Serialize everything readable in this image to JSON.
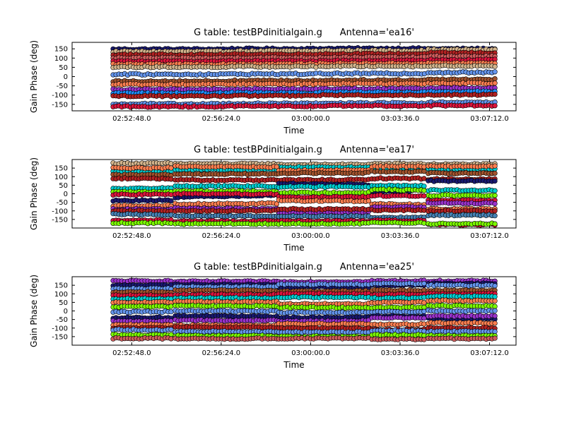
{
  "chart_data": [
    {
      "type": "scatter",
      "title": "G table: testBPdinitialgain.g      Antenna='ea16'",
      "xlabel": "Time",
      "ylabel": "Gain Phase (deg)",
      "xtick_labels": [
        "02:52:48.0",
        "02:56:24.0",
        "03:00:00.0",
        "03:03:36.0",
        "03:07:12.0"
      ],
      "xtick_seconds": [
        0,
        216,
        432,
        648,
        864
      ],
      "xlim_seconds": [
        -144,
        928
      ],
      "yticks": [
        -150,
        -100,
        -50,
        0,
        50,
        100,
        150
      ],
      "ylim": [
        -185,
        185
      ],
      "grid": false,
      "scan_seconds": [
        [
          -45,
          232
        ],
        [
          235,
          450
        ],
        [
          455,
          712
        ],
        [
          716,
          880
        ]
      ],
      "series": [
        {
          "color": "#191970",
          "values": [
            148,
            150,
            152,
            150
          ]
        },
        {
          "color": "#d2b48c",
          "values": [
            135,
            138,
            140,
            145
          ]
        },
        {
          "color": "#b22222",
          "values": [
            118,
            120,
            122,
            128
          ]
        },
        {
          "color": "#cd5c5c",
          "values": [
            100,
            102,
            104,
            110
          ]
        },
        {
          "color": "#dc143c",
          "values": [
            82,
            84,
            86,
            90
          ]
        },
        {
          "color": "#ff7f50",
          "values": [
            66,
            68,
            70,
            72
          ]
        },
        {
          "color": "#d2b48c",
          "values": [
            52,
            54,
            56,
            58
          ]
        },
        {
          "color": "#6495ed",
          "values": [
            12,
            14,
            16,
            22
          ]
        },
        {
          "color": "#a0522d",
          "values": [
            -25,
            -22,
            -20,
            -15
          ]
        },
        {
          "color": "#ff7f50",
          "values": [
            -42,
            -40,
            -38,
            -35
          ]
        },
        {
          "color": "#9932cc",
          "values": [
            -70,
            -68,
            -66,
            -62
          ]
        },
        {
          "color": "#1e90ff",
          "values": [
            -90,
            -88,
            -85,
            -82
          ]
        },
        {
          "color": "#b22222",
          "values": [
            -105,
            -103,
            -100,
            -98
          ]
        },
        {
          "color": "#6495ed",
          "values": [
            -148,
            -146,
            -144,
            -140
          ]
        },
        {
          "color": "#dc143c",
          "values": [
            -162,
            -160,
            -158,
            -156
          ]
        }
      ]
    },
    {
      "type": "scatter",
      "title": "G table: testBPdinitialgain.g      Antenna='ea17'",
      "xlabel": "Time",
      "ylabel": "Gain Phase (deg)",
      "xtick_labels": [
        "02:52:48.0",
        "02:56:24.0",
        "03:00:00.0",
        "03:03:36.0",
        "03:07:12.0"
      ],
      "xtick_seconds": [
        0,
        216,
        432,
        648,
        864
      ],
      "xlim_seconds": [
        -144,
        928
      ],
      "yticks": [
        -150,
        -100,
        -50,
        0,
        50,
        100,
        150
      ],
      "ylim": [
        -200,
        200
      ],
      "grid": false,
      "scan_seconds": [
        [
          -45,
          100
        ],
        [
          105,
          350
        ],
        [
          355,
          575
        ],
        [
          580,
          712
        ],
        [
          716,
          880
        ]
      ],
      "series": [
        {
          "color": "#d2b48c",
          "values": [
            178,
            175,
            170,
            175,
            172
          ]
        },
        {
          "color": "#00ced1",
          "values": [
            130,
            140,
            155,
            150,
            145
          ]
        },
        {
          "color": "#ff7f50",
          "values": [
            150,
            160,
            135,
            160,
            160
          ]
        },
        {
          "color": "#a0522d",
          "values": [
            110,
            115,
            120,
            130,
            120
          ]
        },
        {
          "color": "#b22222",
          "values": [
            90,
            80,
            80,
            90,
            85
          ]
        },
        {
          "color": "#191970",
          "values": [
            -40,
            -20,
            60,
            10,
            75
          ]
        },
        {
          "color": "#00ced1",
          "values": [
            30,
            45,
            40,
            50,
            20
          ]
        },
        {
          "color": "#7cfc00",
          "values": [
            10,
            15,
            5,
            25,
            -10
          ]
        },
        {
          "color": "#dc143c",
          "values": [
            -5,
            0,
            -20,
            -10,
            -40
          ]
        },
        {
          "color": "#ff7f50",
          "values": [
            -70,
            -60,
            -40,
            -60,
            -90
          ]
        },
        {
          "color": "#9932cc",
          "values": [
            -90,
            -85,
            -110,
            -80,
            -55
          ]
        },
        {
          "color": "#b22222",
          "values": [
            -100,
            -100,
            -90,
            -95,
            -100
          ]
        },
        {
          "color": "#4682b4",
          "values": [
            -120,
            -130,
            -130,
            -140,
            -125
          ]
        },
        {
          "color": "#dc143c",
          "values": [
            -155,
            -160,
            -160,
            -155,
            -180
          ]
        },
        {
          "color": "#7cfc00",
          "values": [
            -170,
            -175,
            -175,
            -170,
            -175
          ]
        }
      ]
    },
    {
      "type": "scatter",
      "title": "G table: testBPdinitialgain.g      Antenna='ea25'",
      "xlabel": "Time",
      "ylabel": "Gain Phase (deg)",
      "xtick_labels": [
        "02:52:48.0",
        "02:56:24.0",
        "03:00:00.0",
        "03:03:36.0",
        "03:07:12.0"
      ],
      "xtick_seconds": [
        0,
        216,
        432,
        648,
        864
      ],
      "xlim_seconds": [
        -144,
        928
      ],
      "yticks": [
        -150,
        -100,
        -50,
        0,
        50,
        100,
        150
      ],
      "ylim": [
        -200,
        200
      ],
      "grid": false,
      "scan_seconds": [
        [
          -45,
          100
        ],
        [
          105,
          350
        ],
        [
          355,
          575
        ],
        [
          580,
          712
        ],
        [
          716,
          880
        ]
      ],
      "series": [
        {
          "color": "#9932cc",
          "values": [
            175,
            172,
            170,
            175,
            175
          ]
        },
        {
          "color": "#191970",
          "values": [
            150,
            155,
            140,
            150,
            160
          ]
        },
        {
          "color": "#6495ed",
          "values": [
            130,
            140,
            155,
            160,
            150
          ]
        },
        {
          "color": "#a0522d",
          "values": [
            110,
            120,
            115,
            120,
            120
          ]
        },
        {
          "color": "#dc143c",
          "values": [
            90,
            95,
            100,
            95,
            100
          ]
        },
        {
          "color": "#00ced1",
          "values": [
            70,
            75,
            80,
            75,
            85
          ]
        },
        {
          "color": "#ff7f50",
          "values": [
            50,
            55,
            40,
            50,
            60
          ]
        },
        {
          "color": "#7cfc00",
          "values": [
            25,
            30,
            20,
            20,
            30
          ]
        },
        {
          "color": "#6495ed",
          "values": [
            -5,
            0,
            -10,
            -5,
            0
          ]
        },
        {
          "color": "#191970",
          "values": [
            -40,
            -30,
            -40,
            -30,
            -45
          ]
        },
        {
          "color": "#9932cc",
          "values": [
            -60,
            -55,
            -60,
            -40,
            -30
          ]
        },
        {
          "color": "#ff7f50",
          "values": [
            -80,
            -85,
            -75,
            -80,
            -70
          ]
        },
        {
          "color": "#b22222",
          "values": [
            -100,
            -95,
            -100,
            -110,
            -100
          ]
        },
        {
          "color": "#6495ed",
          "values": [
            -110,
            -120,
            -125,
            -115,
            -120
          ]
        },
        {
          "color": "#7cfc00",
          "values": [
            -140,
            -145,
            -150,
            -140,
            -145
          ]
        },
        {
          "color": "#cd5c5c",
          "values": [
            -160,
            -162,
            -160,
            -165,
            -162
          ]
        }
      ]
    }
  ]
}
